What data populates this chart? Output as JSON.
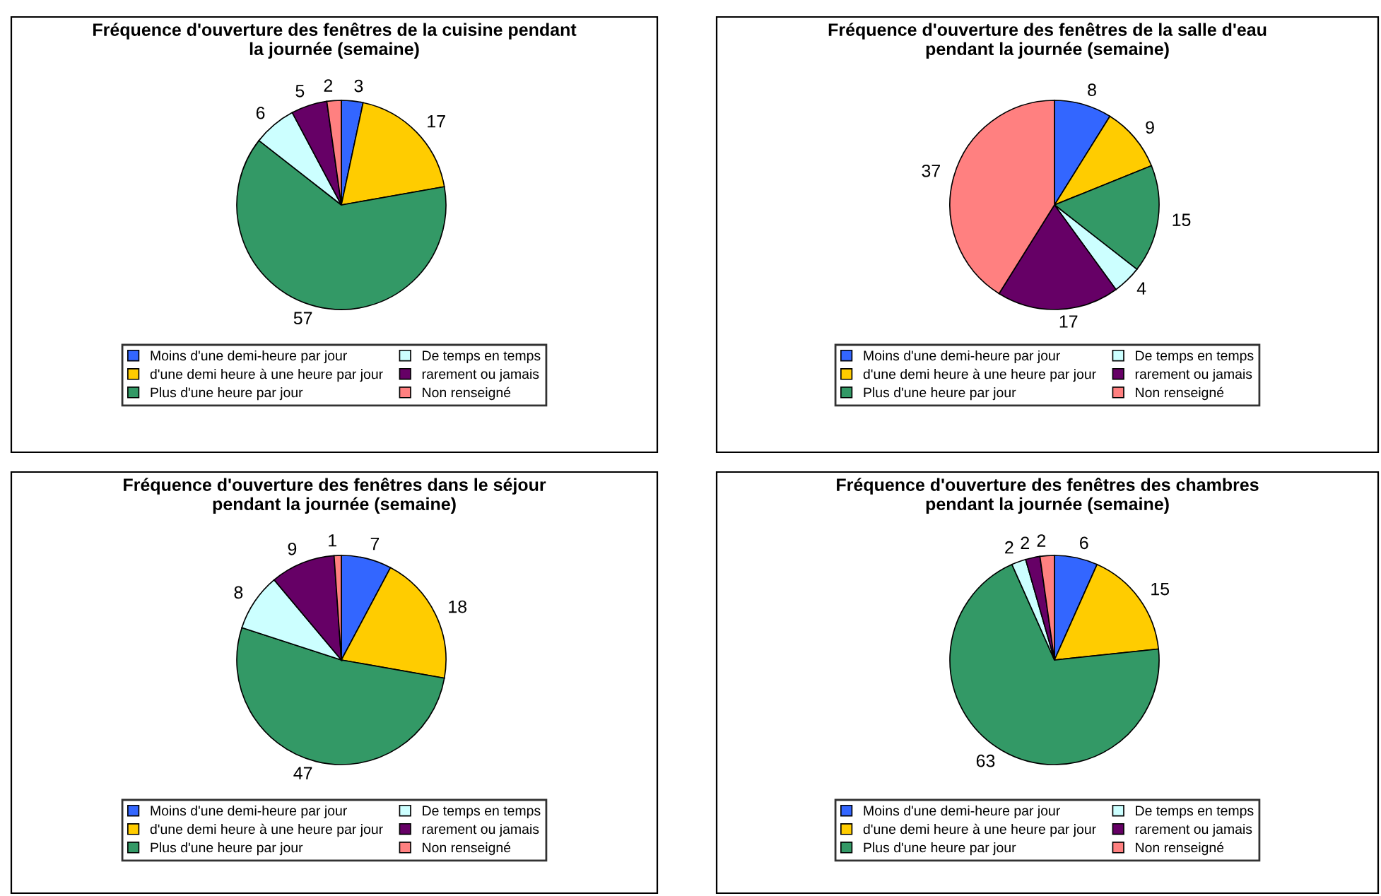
{
  "chart_data": [
    {
      "type": "pie",
      "title": "Fréquence d'ouverture des fenêtres de la cuisine pendant\nla journée (semaine)",
      "categories": [
        "Moins d'une demi-heure par jour",
        "d'une demi heure à une heure par jour",
        "Plus d'une heure par jour",
        "De temps en temps",
        "rarement ou jamais",
        "Non renseigné"
      ],
      "values": [
        3,
        17,
        57,
        6,
        5,
        2
      ],
      "colors": [
        "#3366ff",
        "#ffcc00",
        "#339966",
        "#ccffff",
        "#660066",
        "#ff8080"
      ],
      "data_labels": true,
      "legend": "bottom"
    },
    {
      "type": "pie",
      "title": "Fréquence d'ouverture des fenêtres de la salle d'eau\npendant la journée (semaine)",
      "categories": [
        "Moins d'une demi-heure par jour",
        "d'une demi heure à une heure par jour",
        "Plus d'une heure par jour",
        "De temps en temps",
        "rarement ou jamais",
        "Non renseigné"
      ],
      "values": [
        8,
        9,
        15,
        4,
        17,
        37
      ],
      "colors": [
        "#3366ff",
        "#ffcc00",
        "#339966",
        "#ccffff",
        "#660066",
        "#ff8080"
      ],
      "data_labels": true,
      "legend": "bottom"
    },
    {
      "type": "pie",
      "title": "Fréquence d'ouverture des fenêtres dans le séjour\npendant la journée (semaine)",
      "categories": [
        "Moins d'une demi-heure par jour",
        "d'une demi heure à une heure par jour",
        "Plus d'une heure par jour",
        "De temps en temps",
        "rarement ou jamais",
        "Non renseigné"
      ],
      "values": [
        7,
        18,
        47,
        8,
        9,
        1
      ],
      "colors": [
        "#3366ff",
        "#ffcc00",
        "#339966",
        "#ccffff",
        "#660066",
        "#ff8080"
      ],
      "data_labels": true,
      "legend": "bottom"
    },
    {
      "type": "pie",
      "title": "Fréquence d'ouverture des fenêtres des chambres\npendant la journée (semaine)",
      "categories": [
        "Moins d'une demi-heure par jour",
        "d'une demi heure à une heure par jour",
        "Plus d'une heure par jour",
        "De temps en temps",
        "rarement ou jamais",
        "Non renseigné"
      ],
      "values": [
        6,
        15,
        63,
        2,
        2,
        2
      ],
      "colors": [
        "#3366ff",
        "#ffcc00",
        "#339966",
        "#ccffff",
        "#660066",
        "#ff8080"
      ],
      "data_labels": true,
      "legend": "bottom"
    }
  ]
}
